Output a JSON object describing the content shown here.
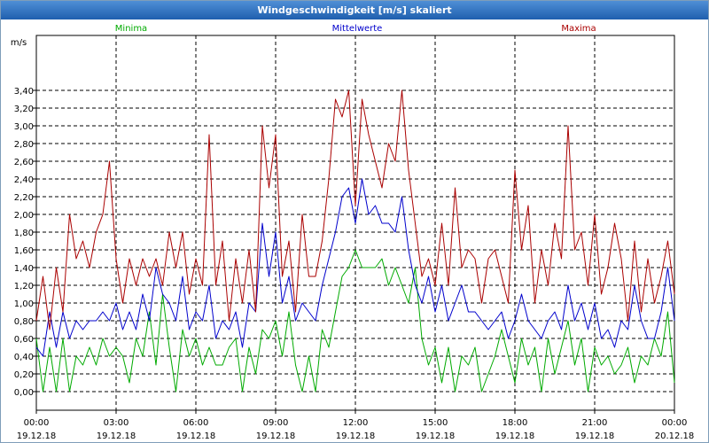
{
  "window": {
    "title": "Windgeschwindigkeit [m/s] skaliert"
  },
  "chart_data": {
    "type": "line",
    "title": "Windgeschwindigkeit [m/s] skaliert",
    "ylabel": "m/s",
    "xlabel": "",
    "ylim": [
      0,
      3.5
    ],
    "yticks": [
      "0,00",
      "0,20",
      "0,40",
      "0,60",
      "0,80",
      "1,00",
      "1,20",
      "1,40",
      "1,60",
      "1,80",
      "2,00",
      "2,20",
      "2,40",
      "2,60",
      "2,80",
      "3,00",
      "3,20",
      "3,40"
    ],
    "xticks": [
      {
        "time": "00:00",
        "date": "19.12.18"
      },
      {
        "time": "03:00",
        "date": "19.12.18"
      },
      {
        "time": "06:00",
        "date": "19.12.18"
      },
      {
        "time": "09:00",
        "date": "19.12.18"
      },
      {
        "time": "12:00",
        "date": "19.12.18"
      },
      {
        "time": "15:00",
        "date": "19.12.18"
      },
      {
        "time": "18:00",
        "date": "19.12.18"
      },
      {
        "time": "21:00",
        "date": "19.12.18"
      },
      {
        "time": "00:00",
        "date": "20.12.18"
      }
    ],
    "x_unit": "hours",
    "xlim": [
      0,
      24
    ],
    "grid": true,
    "series": [
      {
        "name": "Minima",
        "color": "#00aa00",
        "x": [
          0,
          0.25,
          0.5,
          0.75,
          1,
          1.25,
          1.5,
          1.75,
          2,
          2.25,
          2.5,
          2.75,
          3,
          3.25,
          3.5,
          3.75,
          4,
          4.25,
          4.5,
          4.75,
          5,
          5.25,
          5.5,
          5.75,
          6,
          6.25,
          6.5,
          6.75,
          7,
          7.25,
          7.5,
          7.75,
          8,
          8.25,
          8.5,
          8.75,
          9,
          9.25,
          9.5,
          9.75,
          10,
          10.25,
          10.5,
          10.75,
          11,
          11.25,
          11.5,
          11.75,
          12,
          12.25,
          12.5,
          12.75,
          13,
          13.25,
          13.5,
          13.75,
          14,
          14.25,
          14.5,
          14.75,
          15,
          15.25,
          15.5,
          15.75,
          16,
          16.25,
          16.5,
          16.75,
          17,
          17.25,
          17.5,
          17.75,
          18,
          18.25,
          18.5,
          18.75,
          19,
          19.25,
          19.5,
          19.75,
          20,
          20.25,
          20.5,
          20.75,
          21,
          21.25,
          21.5,
          21.75,
          22,
          22.25,
          22.5,
          22.75,
          23,
          23.25,
          23.5,
          23.75,
          24
        ],
        "values": [
          0.6,
          0.0,
          0.5,
          0.0,
          0.6,
          0.0,
          0.4,
          0.3,
          0.5,
          0.3,
          0.6,
          0.4,
          0.5,
          0.4,
          0.1,
          0.6,
          0.4,
          0.9,
          0.3,
          1.1,
          0.5,
          0.0,
          0.7,
          0.4,
          0.6,
          0.3,
          0.5,
          0.3,
          0.3,
          0.5,
          0.6,
          0.0,
          0.5,
          0.2,
          0.7,
          0.6,
          0.8,
          0.4,
          0.9,
          0.3,
          0.0,
          0.4,
          0.0,
          0.7,
          0.5,
          0.9,
          1.3,
          1.4,
          1.6,
          1.4,
          1.4,
          1.4,
          1.5,
          1.2,
          1.4,
          1.2,
          1.0,
          1.4,
          0.6,
          0.3,
          0.5,
          0.1,
          0.5,
          0.0,
          0.4,
          0.3,
          0.5,
          0.0,
          0.2,
          0.4,
          0.7,
          0.4,
          0.1,
          0.6,
          0.3,
          0.5,
          0.0,
          0.6,
          0.2,
          0.5,
          0.8,
          0.3,
          0.6,
          0.0,
          0.5,
          0.3,
          0.4,
          0.2,
          0.3,
          0.5,
          0.1,
          0.4,
          0.3,
          0.6,
          0.4,
          0.9,
          0.1
        ]
      },
      {
        "name": "Mittelwerte",
        "color": "#0000cc",
        "x": [
          0,
          0.25,
          0.5,
          0.75,
          1,
          1.25,
          1.5,
          1.75,
          2,
          2.25,
          2.5,
          2.75,
          3,
          3.25,
          3.5,
          3.75,
          4,
          4.25,
          4.5,
          4.75,
          5,
          5.25,
          5.5,
          5.75,
          6,
          6.25,
          6.5,
          6.75,
          7,
          7.25,
          7.5,
          7.75,
          8,
          8.25,
          8.5,
          8.75,
          9,
          9.25,
          9.5,
          9.75,
          10,
          10.25,
          10.5,
          10.75,
          11,
          11.25,
          11.5,
          11.75,
          12,
          12.25,
          12.5,
          12.75,
          13,
          13.25,
          13.5,
          13.75,
          14,
          14.25,
          14.5,
          14.75,
          15,
          15.25,
          15.5,
          15.75,
          16,
          16.25,
          16.5,
          16.75,
          17,
          17.25,
          17.5,
          17.75,
          18,
          18.25,
          18.5,
          18.75,
          19,
          19.25,
          19.5,
          19.75,
          20,
          20.25,
          20.5,
          20.75,
          21,
          21.25,
          21.5,
          21.75,
          22,
          22.25,
          22.5,
          22.75,
          23,
          23.25,
          23.5,
          23.75,
          24
        ],
        "values": [
          0.5,
          0.4,
          0.9,
          0.5,
          0.9,
          0.6,
          0.8,
          0.7,
          0.8,
          0.8,
          0.9,
          0.8,
          1.0,
          0.7,
          0.9,
          0.7,
          1.1,
          0.8,
          1.4,
          1.1,
          1.0,
          0.8,
          1.3,
          0.7,
          0.9,
          0.8,
          1.2,
          0.6,
          0.8,
          0.7,
          0.9,
          0.5,
          1.0,
          0.9,
          1.9,
          1.3,
          1.8,
          1.0,
          1.3,
          0.8,
          1.0,
          0.9,
          0.8,
          1.2,
          1.5,
          1.8,
          2.2,
          2.3,
          1.9,
          2.4,
          2.0,
          2.1,
          1.9,
          1.9,
          1.8,
          2.2,
          1.6,
          1.2,
          1.0,
          1.3,
          0.9,
          1.2,
          0.8,
          1.0,
          1.2,
          0.9,
          0.9,
          0.8,
          0.7,
          0.8,
          0.9,
          0.6,
          0.8,
          1.1,
          0.8,
          0.7,
          0.6,
          0.8,
          0.9,
          0.7,
          1.2,
          0.8,
          1.0,
          0.7,
          1.0,
          0.6,
          0.7,
          0.5,
          0.8,
          0.7,
          1.2,
          0.8,
          0.6,
          0.6,
          0.9,
          1.4,
          0.8
        ]
      },
      {
        "name": "Maxima",
        "color": "#aa0000",
        "x": [
          0,
          0.25,
          0.5,
          0.75,
          1,
          1.25,
          1.5,
          1.75,
          2,
          2.25,
          2.5,
          2.75,
          3,
          3.25,
          3.5,
          3.75,
          4,
          4.25,
          4.5,
          4.75,
          5,
          5.25,
          5.5,
          5.75,
          6,
          6.25,
          6.5,
          6.75,
          7,
          7.25,
          7.5,
          7.75,
          8,
          8.25,
          8.5,
          8.75,
          9,
          9.25,
          9.5,
          9.75,
          10,
          10.25,
          10.5,
          10.75,
          11,
          11.25,
          11.5,
          11.75,
          12,
          12.25,
          12.5,
          12.75,
          13,
          13.25,
          13.5,
          13.75,
          14,
          14.25,
          14.5,
          14.75,
          15,
          15.25,
          15.5,
          15.75,
          16,
          16.25,
          16.5,
          16.75,
          17,
          17.25,
          17.5,
          17.75,
          18,
          18.25,
          18.5,
          18.75,
          19,
          19.25,
          19.5,
          19.75,
          20,
          20.25,
          20.5,
          20.75,
          21,
          21.25,
          21.5,
          21.75,
          22,
          22.25,
          22.5,
          22.75,
          23,
          23.25,
          23.5,
          23.75,
          24
        ],
        "values": [
          0.8,
          1.3,
          0.7,
          1.4,
          0.9,
          2.0,
          1.5,
          1.7,
          1.4,
          1.8,
          2.0,
          2.6,
          1.5,
          1.0,
          1.5,
          1.2,
          1.5,
          1.3,
          1.5,
          1.2,
          1.8,
          1.4,
          1.8,
          1.1,
          1.5,
          1.2,
          2.9,
          1.2,
          1.7,
          0.8,
          1.5,
          1.0,
          1.6,
          0.9,
          3.0,
          2.3,
          2.9,
          1.3,
          1.7,
          0.9,
          2.0,
          1.3,
          1.3,
          1.7,
          2.4,
          3.3,
          3.1,
          3.4,
          2.1,
          3.3,
          2.9,
          2.6,
          2.3,
          2.8,
          2.6,
          3.4,
          2.5,
          1.9,
          1.3,
          1.5,
          1.2,
          1.9,
          1.2,
          2.3,
          1.4,
          1.6,
          1.5,
          1.0,
          1.5,
          1.6,
          1.3,
          1.0,
          2.5,
          1.6,
          2.1,
          1.0,
          1.6,
          1.2,
          1.9,
          1.5,
          3.0,
          1.6,
          1.8,
          1.2,
          2.0,
          1.1,
          1.4,
          1.9,
          1.5,
          0.8,
          1.7,
          0.9,
          1.5,
          1.0,
          1.3,
          1.7,
          1.1
        ]
      }
    ]
  }
}
